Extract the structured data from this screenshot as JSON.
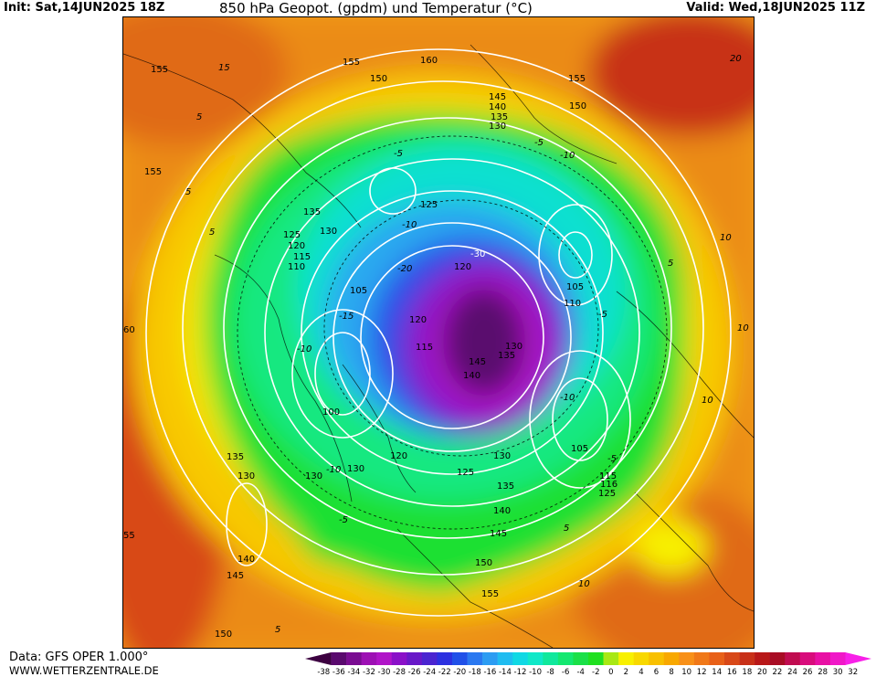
{
  "header": {
    "init": "Init: Sat,14JUN2025 18Z",
    "title": "850 hPa Geopot. (gpdm) und Temperatur (°C)",
    "valid": "Valid: Wed,18JUN2025 11Z"
  },
  "footer": {
    "data_source": "Data: GFS OPER 1.000°",
    "website": "WWW.WETTERZENTRALE.DE"
  },
  "legend": {
    "ticks": [
      "-38",
      "-36",
      "-34",
      "-32",
      "-30",
      "-28",
      "-26",
      "-24",
      "-22",
      "-20",
      "-18",
      "-16",
      "-14",
      "-12",
      "-10",
      "-8",
      "-6",
      "-4",
      "-2",
      "0",
      "2",
      "4",
      "6",
      "8",
      "10",
      "12",
      "14",
      "16",
      "18",
      "20",
      "22",
      "24",
      "26",
      "28",
      "30",
      "32"
    ],
    "colors": [
      "#3c0040",
      "#5a0a6e",
      "#7a0c92",
      "#9d10b4",
      "#b014c8",
      "#8a10c8",
      "#6818c8",
      "#4a24d0",
      "#2c30e0",
      "#2050e8",
      "#2a78f0",
      "#2c9cf2",
      "#20bcf0",
      "#10d8e4",
      "#10e8c8",
      "#10e89c",
      "#14e870",
      "#1ae048",
      "#20e020",
      "#a8e814",
      "#f8f000",
      "#f8d800",
      "#f8c000",
      "#f8a800",
      "#f89018",
      "#f07818",
      "#e86018",
      "#d84818",
      "#c83018",
      "#b81818",
      "#a80c24",
      "#c00c50",
      "#d80c7c",
      "#e810a4",
      "#f018c8",
      "#f820e8"
    ]
  },
  "map_labels": {
    "geopotential": [
      "155",
      "155",
      "150",
      "160",
      "155",
      "150",
      "145",
      "140",
      "135",
      "130",
      "125",
      "135",
      "130",
      "125",
      "120",
      "115",
      "110",
      "105",
      "100",
      "120",
      "115",
      "145",
      "140",
      "135",
      "130",
      "120",
      "105",
      "110",
      "105",
      "100",
      "105",
      "120",
      "130",
      "130",
      "130",
      "125",
      "135",
      "140",
      "145",
      "150",
      "155",
      "115",
      "116",
      "120",
      "125",
      "135",
      "130",
      "140",
      "145",
      "150",
      "60",
      "55",
      "155"
    ],
    "temperature": [
      "15",
      "5",
      "5",
      "-5",
      "-10",
      "-15",
      "-5",
      "-10",
      "-15",
      "-10",
      "5",
      "10",
      "10",
      "5",
      "-5",
      "-10",
      "-5",
      "-5",
      "5",
      "5",
      "10",
      "10",
      "20",
      "15",
      "-30",
      "-20",
      "-10"
    ]
  }
}
